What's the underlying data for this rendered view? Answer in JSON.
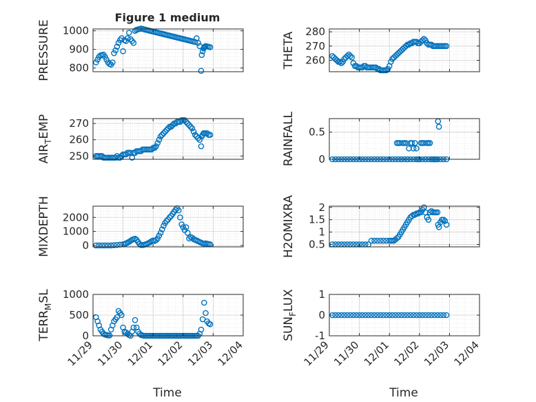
{
  "figure_title": "Figure 1 medium",
  "x_tick_labels": [
    "11/29",
    "11/30",
    "12/01",
    "12/02",
    "12/03",
    "12/04"
  ],
  "x_label": "Time",
  "colors": {
    "marker": "#0072BD",
    "axis": "#262626",
    "grid": "#d0d0d0"
  },
  "chart_data": [
    {
      "type": "scatter",
      "title": "Figure 1 medium",
      "ylabel": "PRESSURE",
      "xlabel": "",
      "ylim": [
        780,
        1010
      ],
      "yticks": [
        800,
        900,
        1000
      ],
      "xlim": [
        0,
        5
      ],
      "grid": true,
      "x": [
        0.1,
        0.15,
        0.2,
        0.25,
        0.3,
        0.35,
        0.4,
        0.45,
        0.5,
        0.55,
        0.6,
        0.65,
        0.7,
        0.75,
        0.8,
        0.85,
        0.9,
        0.95,
        1.0,
        1.05,
        1.1,
        1.15,
        1.2,
        1.25,
        1.3,
        1.35,
        1.4,
        1.45,
        1.5,
        1.55,
        1.6,
        1.65,
        1.7,
        1.75,
        1.8,
        1.85,
        1.9,
        1.95,
        2.0,
        2.05,
        2.1,
        2.15,
        2.2,
        2.25,
        2.3,
        2.35,
        2.4,
        2.45,
        2.5,
        2.55,
        2.6,
        2.65,
        2.7,
        2.75,
        2.8,
        2.85,
        2.9,
        2.95,
        3.0,
        3.05,
        3.1,
        3.15,
        3.2,
        3.25,
        3.3,
        3.35,
        3.4,
        3.45,
        3.5,
        3.55,
        3.6,
        3.62,
        3.65,
        3.68,
        3.7,
        3.72,
        3.75,
        3.8,
        3.85,
        3.9
      ],
      "y": [
        830,
        845,
        860,
        868,
        870,
        872,
        860,
        845,
        830,
        822,
        818,
        830,
        880,
        895,
        915,
        935,
        950,
        960,
        890,
        950,
        945,
        960,
        990,
        955,
        945,
        935,
        1000,
        1005,
        1008,
        1010,
        1012,
        1010,
        1008,
        1006,
        1004,
        1002,
        1000,
        998,
        996,
        994,
        992,
        990,
        988,
        986,
        984,
        982,
        980,
        978,
        976,
        974,
        972,
        970,
        968,
        966,
        964,
        962,
        960,
        958,
        956,
        954,
        952,
        950,
        948,
        946,
        944,
        942,
        940,
        960,
        935,
        918,
        785,
        870,
        890,
        905,
        910,
        915,
        918,
        916,
        914,
        912
      ]
    },
    {
      "type": "scatter",
      "ylabel": "THETA",
      "xlabel": "",
      "ylim": [
        252,
        282
      ],
      "yticks": [
        260,
        270,
        280
      ],
      "xlim": [
        0,
        5
      ],
      "grid": true,
      "x": [
        0.1,
        0.15,
        0.2,
        0.25,
        0.3,
        0.35,
        0.4,
        0.45,
        0.5,
        0.55,
        0.6,
        0.65,
        0.7,
        0.75,
        0.8,
        0.85,
        0.9,
        0.95,
        1.0,
        1.05,
        1.1,
        1.15,
        1.2,
        1.25,
        1.3,
        1.35,
        1.4,
        1.45,
        1.5,
        1.55,
        1.6,
        1.65,
        1.7,
        1.75,
        1.8,
        1.85,
        1.9,
        1.95,
        2.0,
        2.05,
        2.1,
        2.15,
        2.2,
        2.25,
        2.3,
        2.35,
        2.4,
        2.45,
        2.5,
        2.55,
        2.6,
        2.65,
        2.7,
        2.75,
        2.8,
        2.85,
        2.9,
        2.95,
        3.0,
        3.05,
        3.1,
        3.15,
        3.2,
        3.25,
        3.3,
        3.35,
        3.4,
        3.45,
        3.5,
        3.55,
        3.6,
        3.65,
        3.7,
        3.75,
        3.8,
        3.85,
        3.9
      ],
      "y": [
        263,
        262,
        261,
        260,
        259,
        259,
        258,
        259,
        261,
        262,
        263,
        264,
        263,
        262,
        258,
        256,
        256,
        255,
        255,
        255,
        255,
        256,
        256,
        255,
        255,
        255,
        255,
        255,
        255,
        255,
        254,
        254,
        253,
        253,
        253,
        253,
        253,
        254,
        256,
        259,
        261,
        262,
        263,
        264,
        265,
        266,
        267,
        268,
        269,
        270,
        271,
        271,
        272,
        272,
        273,
        273,
        273,
        272,
        272,
        273,
        274,
        275,
        274,
        272,
        271,
        271,
        271,
        270,
        270,
        270,
        270,
        270,
        270,
        270,
        270,
        270,
        270
      ]
    },
    {
      "type": "scatter",
      "ylabel": "AIR_TEMP",
      "xlabel": "",
      "ylim": [
        248,
        273
      ],
      "yticks": [
        250,
        260,
        270
      ],
      "xlim": [
        0,
        5
      ],
      "grid": true,
      "x": [
        0.1,
        0.15,
        0.2,
        0.25,
        0.3,
        0.35,
        0.4,
        0.45,
        0.5,
        0.55,
        0.6,
        0.65,
        0.7,
        0.75,
        0.8,
        0.85,
        0.9,
        0.95,
        1.0,
        1.05,
        1.1,
        1.15,
        1.2,
        1.25,
        1.3,
        1.35,
        1.4,
        1.45,
        1.5,
        1.55,
        1.6,
        1.65,
        1.7,
        1.75,
        1.8,
        1.85,
        1.9,
        1.95,
        2.0,
        2.05,
        2.1,
        2.15,
        2.2,
        2.25,
        2.3,
        2.35,
        2.4,
        2.45,
        2.5,
        2.55,
        2.6,
        2.65,
        2.7,
        2.75,
        2.8,
        2.85,
        2.9,
        2.95,
        3.0,
        3.05,
        3.1,
        3.15,
        3.2,
        3.25,
        3.3,
        3.35,
        3.4,
        3.45,
        3.5,
        3.55,
        3.6,
        3.62,
        3.65,
        3.68,
        3.7,
        3.75,
        3.8,
        3.85,
        3.9
      ],
      "y": [
        250,
        250,
        250,
        250,
        250,
        249,
        249,
        249,
        249,
        249,
        249,
        249,
        249,
        249,
        250,
        249,
        249,
        250,
        251,
        251,
        251,
        252,
        252,
        252,
        249,
        252,
        252,
        253,
        253,
        253,
        253,
        254,
        254,
        254,
        254,
        254,
        254,
        254,
        255,
        255,
        256,
        258,
        260,
        262,
        263,
        264,
        265,
        266,
        267,
        268,
        268,
        269,
        270,
        270,
        271,
        271,
        271,
        272,
        272,
        272,
        271,
        270,
        269,
        268,
        267,
        265,
        263,
        262,
        261,
        260,
        256,
        262,
        263,
        264,
        264,
        264,
        264,
        263,
        263
      ]
    },
    {
      "type": "scatter",
      "ylabel": "RAINFALL",
      "xlabel": "",
      "ylim": [
        0,
        0.75
      ],
      "yticks": [
        0,
        0.5
      ],
      "xlim": [
        0,
        5
      ],
      "grid": true,
      "x": [
        0.1,
        0.2,
        0.3,
        0.4,
        0.5,
        0.6,
        0.7,
        0.8,
        0.9,
        1.0,
        1.1,
        1.2,
        1.3,
        1.4,
        1.5,
        1.6,
        1.7,
        1.8,
        1.9,
        2.0,
        2.1,
        2.2,
        2.3,
        2.4,
        2.5,
        2.6,
        2.7,
        2.8,
        2.9,
        3.0,
        3.1,
        3.2,
        3.3,
        3.4,
        3.5,
        3.6,
        3.7,
        3.8,
        3.9,
        2.25,
        2.3,
        2.35,
        2.4,
        2.45,
        2.5,
        2.55,
        2.6,
        2.65,
        2.7,
        2.75,
        2.8,
        2.85,
        2.9,
        2.95,
        3.0,
        3.05,
        3.1,
        3.15,
        3.2,
        3.25,
        3.3,
        3.35,
        3.4,
        3.45,
        3.5,
        3.55,
        3.6,
        3.62,
        3.65
      ],
      "y": [
        0,
        0,
        0,
        0,
        0,
        0,
        0,
        0,
        0,
        0,
        0,
        0,
        0,
        0,
        0,
        0,
        0,
        0,
        0,
        0,
        0,
        0,
        0,
        0,
        0,
        0,
        0,
        0,
        0,
        0,
        0,
        0,
        0,
        0,
        0,
        0,
        0,
        0,
        0,
        0.3,
        0.3,
        0.3,
        0,
        0.3,
        0.3,
        0.3,
        0,
        0.2,
        0.3,
        0.3,
        0.2,
        0.3,
        0.2,
        0,
        0,
        0.3,
        0.3,
        0.3,
        0,
        0.3,
        0.3,
        0.3,
        0,
        0,
        0,
        0,
        0,
        0.7,
        0.6
      ]
    },
    {
      "type": "scatter",
      "ylabel": "MIXDEPTH",
      "xlabel": "",
      "ylim": [
        -100,
        2800
      ],
      "yticks": [
        0,
        1000,
        2000
      ],
      "xlim": [
        0,
        5
      ],
      "grid": true,
      "x": [
        0.1,
        0.2,
        0.3,
        0.4,
        0.5,
        0.6,
        0.7,
        0.8,
        0.9,
        1.0,
        1.05,
        1.1,
        1.15,
        1.2,
        1.25,
        1.3,
        1.35,
        1.4,
        1.45,
        1.5,
        1.55,
        1.6,
        1.65,
        1.7,
        1.75,
        1.8,
        1.85,
        1.9,
        1.95,
        2.0,
        2.05,
        2.1,
        2.15,
        2.2,
        2.25,
        2.3,
        2.35,
        2.4,
        2.45,
        2.5,
        2.55,
        2.6,
        2.65,
        2.7,
        2.75,
        2.8,
        2.85,
        2.9,
        2.95,
        3.0,
        3.05,
        3.1,
        3.15,
        3.2,
        3.25,
        3.3,
        3.35,
        3.4,
        3.45,
        3.5,
        3.55,
        3.6,
        3.65,
        3.7,
        3.75,
        3.8,
        3.85,
        3.9
      ],
      "y": [
        0,
        0,
        0,
        0,
        0,
        0,
        20,
        40,
        60,
        80,
        100,
        150,
        200,
        260,
        330,
        400,
        450,
        480,
        400,
        250,
        100,
        30,
        30,
        50,
        80,
        120,
        170,
        230,
        300,
        350,
        320,
        380,
        500,
        700,
        900,
        1150,
        1400,
        1600,
        1750,
        1850,
        2000,
        2100,
        2250,
        2400,
        2550,
        2650,
        2500,
        2000,
        1500,
        1300,
        1100,
        1300,
        900,
        500,
        600,
        550,
        450,
        400,
        350,
        300,
        250,
        200,
        150,
        100,
        150,
        120,
        100,
        80
      ]
    },
    {
      "type": "scatter",
      "ylabel": "H2OMIXRA",
      "xlabel": "",
      "ylim": [
        0.4,
        2.05
      ],
      "yticks": [
        0.5,
        1,
        1.5,
        2
      ],
      "xlim": [
        0,
        5
      ],
      "grid": true,
      "x": [
        0.1,
        0.2,
        0.3,
        0.4,
        0.5,
        0.6,
        0.7,
        0.8,
        0.9,
        1.0,
        1.1,
        1.2,
        1.3,
        1.4,
        1.5,
        1.6,
        1.7,
        1.8,
        1.9,
        2.0,
        2.05,
        2.1,
        2.15,
        2.2,
        2.25,
        2.3,
        2.35,
        2.4,
        2.45,
        2.5,
        2.55,
        2.6,
        2.65,
        2.7,
        2.75,
        2.8,
        2.85,
        2.9,
        2.95,
        3.0,
        3.05,
        3.1,
        3.15,
        3.2,
        3.25,
        3.3,
        3.35,
        3.4,
        3.45,
        3.5,
        3.55,
        3.6,
        3.62,
        3.65,
        3.7,
        3.75,
        3.8,
        3.85,
        3.9
      ],
      "y": [
        0.5,
        0.5,
        0.5,
        0.5,
        0.5,
        0.5,
        0.5,
        0.5,
        0.5,
        0.5,
        0.5,
        0.5,
        0.5,
        0.65,
        0.65,
        0.65,
        0.65,
        0.65,
        0.65,
        0.65,
        0.65,
        0.65,
        0.65,
        0.7,
        0.75,
        0.8,
        0.9,
        1.0,
        1.1,
        1.2,
        1.3,
        1.4,
        1.5,
        1.6,
        1.65,
        1.7,
        1.7,
        1.75,
        1.75,
        1.8,
        1.8,
        1.9,
        2.0,
        1.8,
        1.6,
        1.5,
        1.8,
        1.85,
        1.8,
        1.8,
        1.8,
        1.8,
        1.3,
        1.2,
        1.4,
        1.5,
        1.5,
        1.45,
        1.3
      ]
    },
    {
      "type": "scatter",
      "ylabel": "TERR_MSL",
      "xlabel": "",
      "ylim": [
        0,
        1000
      ],
      "yticks": [
        0,
        500,
        1000
      ],
      "xlim": [
        0,
        5
      ],
      "grid": true,
      "x": [
        0.1,
        0.15,
        0.2,
        0.25,
        0.3,
        0.35,
        0.4,
        0.45,
        0.5,
        0.55,
        0.6,
        0.65,
        0.7,
        0.75,
        0.8,
        0.85,
        0.9,
        0.95,
        1.0,
        1.05,
        1.1,
        1.15,
        1.2,
        1.25,
        1.3,
        1.35,
        1.4,
        1.45,
        1.5,
        1.55,
        1.6,
        1.65,
        1.7,
        1.75,
        1.8,
        1.85,
        1.9,
        1.95,
        2.0,
        2.05,
        2.1,
        2.15,
        2.2,
        2.25,
        2.3,
        2.35,
        2.4,
        2.45,
        2.5,
        2.55,
        2.6,
        2.65,
        2.7,
        2.75,
        2.8,
        2.85,
        2.9,
        2.95,
        3.0,
        3.05,
        3.1,
        3.15,
        3.2,
        3.25,
        3.3,
        3.35,
        3.4,
        3.45,
        3.5,
        3.55,
        3.6,
        3.65,
        3.7,
        3.75,
        3.8,
        3.85,
        3.9
      ],
      "y": [
        450,
        350,
        250,
        150,
        100,
        50,
        30,
        20,
        10,
        10,
        150,
        250,
        350,
        400,
        450,
        600,
        550,
        500,
        200,
        100,
        80,
        50,
        20,
        0,
        100,
        200,
        380,
        200,
        100,
        50,
        20,
        10,
        0,
        0,
        0,
        0,
        0,
        0,
        0,
        0,
        0,
        0,
        0,
        0,
        0,
        0,
        0,
        0,
        0,
        0,
        0,
        0,
        0,
        0,
        0,
        0,
        0,
        0,
        0,
        0,
        0,
        0,
        0,
        0,
        0,
        0,
        0,
        0,
        0,
        50,
        150,
        400,
        800,
        550,
        350,
        300,
        280
      ]
    },
    {
      "type": "scatter",
      "ylabel": "SUN_FLUX",
      "xlabel": "",
      "ylim": [
        -1,
        1
      ],
      "yticks": [
        -1,
        0,
        1
      ],
      "xlim": [
        0,
        5
      ],
      "grid": true,
      "x": [
        0.1,
        0.2,
        0.3,
        0.4,
        0.5,
        0.6,
        0.7,
        0.8,
        0.9,
        1.0,
        1.1,
        1.2,
        1.3,
        1.4,
        1.5,
        1.6,
        1.7,
        1.8,
        1.9,
        2.0,
        2.1,
        2.2,
        2.3,
        2.4,
        2.5,
        2.6,
        2.7,
        2.8,
        2.9,
        3.0,
        3.1,
        3.2,
        3.3,
        3.4,
        3.5,
        3.6,
        3.7,
        3.8,
        3.9
      ],
      "y": [
        0,
        0,
        0,
        0,
        0,
        0,
        0,
        0,
        0,
        0,
        0,
        0,
        0,
        0,
        0,
        0,
        0,
        0,
        0,
        0,
        0,
        0,
        0,
        0,
        0,
        0,
        0,
        0,
        0,
        0,
        0,
        0,
        0,
        0,
        0,
        0,
        0,
        0,
        0
      ]
    }
  ]
}
